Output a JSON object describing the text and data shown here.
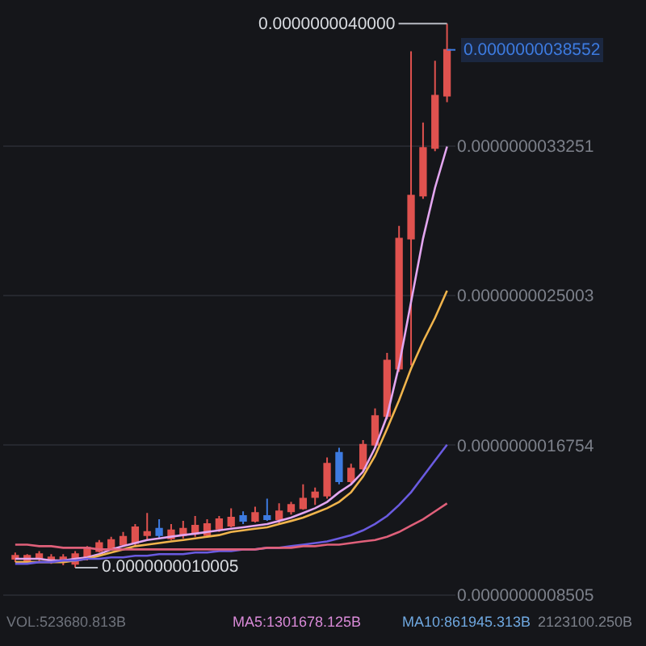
{
  "chart_data": {
    "type": "candlestick",
    "categories": [
      null,
      null,
      null,
      null,
      null,
      null,
      null,
      null,
      null,
      null,
      null,
      null,
      null,
      null,
      null,
      null,
      null,
      null,
      null,
      null,
      null,
      null,
      null,
      null,
      null,
      null,
      null,
      null,
      null,
      null,
      null,
      null,
      null,
      null,
      null,
      null,
      null
    ],
    "ohlc": [
      [
        1.049e-09,
        1.084e-09,
        1.031e-09,
        1.066e-09
      ],
      [
        1.04e-09,
        1.075e-09,
        1.031e-09,
        1.066e-09
      ],
      [
        1.049e-09,
        1.092e-09,
        1.031e-09,
        1.075e-09
      ],
      [
        1.04e-09,
        1.075e-09,
        1.022e-09,
        1.057e-09
      ],
      [
        1.031e-09,
        1.075e-09,
        1.014e-09,
        1.057e-09
      ],
      [
        1.022e-09,
        1.092e-09,
        1.0005e-09,
        1.075e-09
      ],
      [
        1.049e-09,
        1.119e-09,
        1.04e-09,
        1.11e-09
      ],
      [
        1.092e-09,
        1.153e-09,
        1.084e-09,
        1.136e-09
      ],
      [
        1.11e-09,
        1.171e-09,
        1.101e-09,
        1.153e-09
      ],
      [
        1.127e-09,
        1.197e-09,
        1.119e-09,
        1.171e-09
      ],
      [
        1.136e-09,
        1.241e-09,
        1.119e-09,
        1.223e-09
      ],
      [
        1.18e-09,
        1.302e-09,
        1.153e-09,
        1.197e-09
      ],
      [
        1.215e-09,
        1.267e-09,
        1.162e-09,
        1.18e-09
      ],
      [
        1.162e-09,
        1.241e-09,
        1.153e-09,
        1.206e-09
      ],
      [
        1.18e-09,
        1.258e-09,
        1.162e-09,
        1.215e-09
      ],
      [
        1.188e-09,
        1.285e-09,
        1.171e-09,
        1.232e-09
      ],
      [
        1.18e-09,
        1.267e-09,
        1.171e-09,
        1.241e-09
      ],
      [
        1.215e-09,
        1.285e-09,
        1.197e-09,
        1.267e-09
      ],
      [
        1.232e-09,
        1.328e-09,
        1.223e-09,
        1.276e-09
      ],
      [
        1.285e-09,
        1.311e-09,
        1.241e-09,
        1.258e-09
      ],
      [
        1.258e-09,
        1.337e-09,
        1.25e-09,
        1.302e-09
      ],
      [
        1.285e-09,
        1.381e-09,
        1.258e-09,
        1.267e-09
      ],
      [
        1.267e-09,
        1.355e-09,
        1.241e-09,
        1.311e-09
      ],
      [
        1.311e-09,
        1.363e-09,
        1.293e-09,
        1.346e-09
      ],
      [
        1.328e-09,
        1.46e-09,
        1.32e-09,
        1.381e-09
      ],
      [
        1.39e-09,
        1.442e-09,
        1.346e-09,
        1.416e-09
      ],
      [
        1.398e-09,
        1.608e-09,
        1.381e-09,
        1.573e-09
      ],
      [
        1.634e-09,
        1.661e-09,
        1.46e-09,
        1.477e-09
      ],
      [
        1.477e-09,
        1.573e-09,
        1.46e-09,
        1.547e-09
      ],
      [
        1.547e-09,
        1.704e-09,
        1.53e-09,
        1.678e-09
      ],
      [
        1.678e-09,
        1.879e-09,
        1.661e-09,
        1.836e-09
      ],
      [
        1.836e-09,
        2.185e-09,
        1.818e-09,
        2.142e-09
      ],
      [
        2.098e-09,
        2.885e-09,
        2.08e-09,
        2.815e-09
      ],
      [
        2.815e-09,
        3.847e-09,
        2.115e-09,
        3.051e-09
      ],
      [
        3.051e-09,
        3.454e-09,
        3.034e-09,
        3.314e-09
      ],
      [
        3.314e-09,
        3.795e-09,
        3.296e-09,
        3.602e-09
      ],
      [
        3.602e-09,
        4e-09,
        3.567e-09,
        3.8552e-09
      ]
    ],
    "colors": [
      "#e0524f",
      "#e0524f",
      "#e0524f",
      "#e0524f",
      "#e0524f",
      "#e0524f",
      "#e0524f",
      "#e0524f",
      "#e0524f",
      "#e0524f",
      "#e0524f",
      "#e0524f",
      "#3d7be0",
      "#e0524f",
      "#e0524f",
      "#e0524f",
      "#e0524f",
      "#e0524f",
      "#e0524f",
      "#3d7be0",
      "#e0524f",
      "#3d7be0",
      "#e0524f",
      "#e0524f",
      "#e0524f",
      "#e0524f",
      "#e0524f",
      "#3d7be0",
      "#e0524f",
      "#e0524f",
      "#e0524f",
      "#e0524f",
      "#e0524f",
      "#e0524f",
      "#e0524f",
      "#e0524f",
      "#e0524f"
    ],
    "series": [
      {
        "type": "line",
        "color": "#e3a6f0",
        "values": [
          1.049e-09,
          1.049e-09,
          1.049e-09,
          1.04e-09,
          1.04e-09,
          1.049e-09,
          1.057e-09,
          1.075e-09,
          1.101e-09,
          1.119e-09,
          1.136e-09,
          1.153e-09,
          1.162e-09,
          1.171e-09,
          1.18e-09,
          1.188e-09,
          1.197e-09,
          1.206e-09,
          1.215e-09,
          1.223e-09,
          1.232e-09,
          1.241e-09,
          1.258e-09,
          1.276e-09,
          1.302e-09,
          1.328e-09,
          1.363e-09,
          1.416e-09,
          1.46e-09,
          1.53e-09,
          1.661e-09,
          1.836e-09,
          2.115e-09,
          2.465e-09,
          2.815e-09,
          3.095e-09,
          3.322e-09
        ]
      },
      {
        "type": "line",
        "color": "#f0b44c",
        "values": [
          1.031e-09,
          1.031e-09,
          1.031e-09,
          1.031e-09,
          1.031e-09,
          1.04e-09,
          1.049e-09,
          1.066e-09,
          1.084e-09,
          1.101e-09,
          1.119e-09,
          1.127e-09,
          1.136e-09,
          1.145e-09,
          1.153e-09,
          1.162e-09,
          1.171e-09,
          1.18e-09,
          1.197e-09,
          1.206e-09,
          1.215e-09,
          1.223e-09,
          1.241e-09,
          1.258e-09,
          1.276e-09,
          1.302e-09,
          1.328e-09,
          1.363e-09,
          1.416e-09,
          1.503e-09,
          1.617e-09,
          1.766e-09,
          1.923e-09,
          2.098e-09,
          2.247e-09,
          2.378e-09,
          2.527e-09
        ]
      },
      {
        "type": "line",
        "color": "#6a5be0",
        "values": [
          1.022e-09,
          1.022e-09,
          1.031e-09,
          1.031e-09,
          1.04e-09,
          1.04e-09,
          1.049e-09,
          1.049e-09,
          1.057e-09,
          1.057e-09,
          1.066e-09,
          1.066e-09,
          1.075e-09,
          1.075e-09,
          1.075e-09,
          1.084e-09,
          1.084e-09,
          1.092e-09,
          1.092e-09,
          1.101e-09,
          1.101e-09,
          1.11e-09,
          1.11e-09,
          1.119e-09,
          1.127e-09,
          1.136e-09,
          1.145e-09,
          1.162e-09,
          1.18e-09,
          1.206e-09,
          1.241e-09,
          1.285e-09,
          1.346e-09,
          1.416e-09,
          1.503e-09,
          1.591e-09,
          1.678e-09
        ]
      },
      {
        "type": "line",
        "color": "#e0607a",
        "values": [
          1.127e-09,
          1.127e-09,
          1.119e-09,
          1.119e-09,
          1.11e-09,
          1.11e-09,
          1.11e-09,
          1.101e-09,
          1.101e-09,
          1.101e-09,
          1.101e-09,
          1.101e-09,
          1.101e-09,
          1.101e-09,
          1.101e-09,
          1.101e-09,
          1.101e-09,
          1.101e-09,
          1.101e-09,
          1.101e-09,
          1.101e-09,
          1.11e-09,
          1.11e-09,
          1.11e-09,
          1.119e-09,
          1.119e-09,
          1.127e-09,
          1.127e-09,
          1.136e-09,
          1.145e-09,
          1.153e-09,
          1.171e-09,
          1.197e-09,
          1.232e-09,
          1.267e-09,
          1.311e-09,
          1.355e-09
        ]
      }
    ],
    "ylim": [
      8e-10,
      4.13e-09
    ],
    "yticks": [
      {
        "value": 3.3251e-09,
        "label": "0.0000000033251"
      },
      {
        "value": 2.5003e-09,
        "label": "0.0000000025003"
      },
      {
        "value": 1.6754e-09,
        "label": "0.0000000016754"
      },
      {
        "value": 8.505e-10,
        "label": "0.0000000008505"
      }
    ],
    "ref_lines": [
      {
        "axis": "y",
        "value": 3.8552e-09,
        "label": "0.0000000038552",
        "color": "#3d7be0",
        "line_style": "dashed"
      }
    ],
    "annotations": [
      "0.0000000040000",
      "0.0000000010005",
      "VOL:523680.813B",
      "MA5:1301678.125B",
      "MA10:861945.313B",
      "2123100.250B"
    ],
    "grid": "y",
    "tick_labels": "y"
  }
}
